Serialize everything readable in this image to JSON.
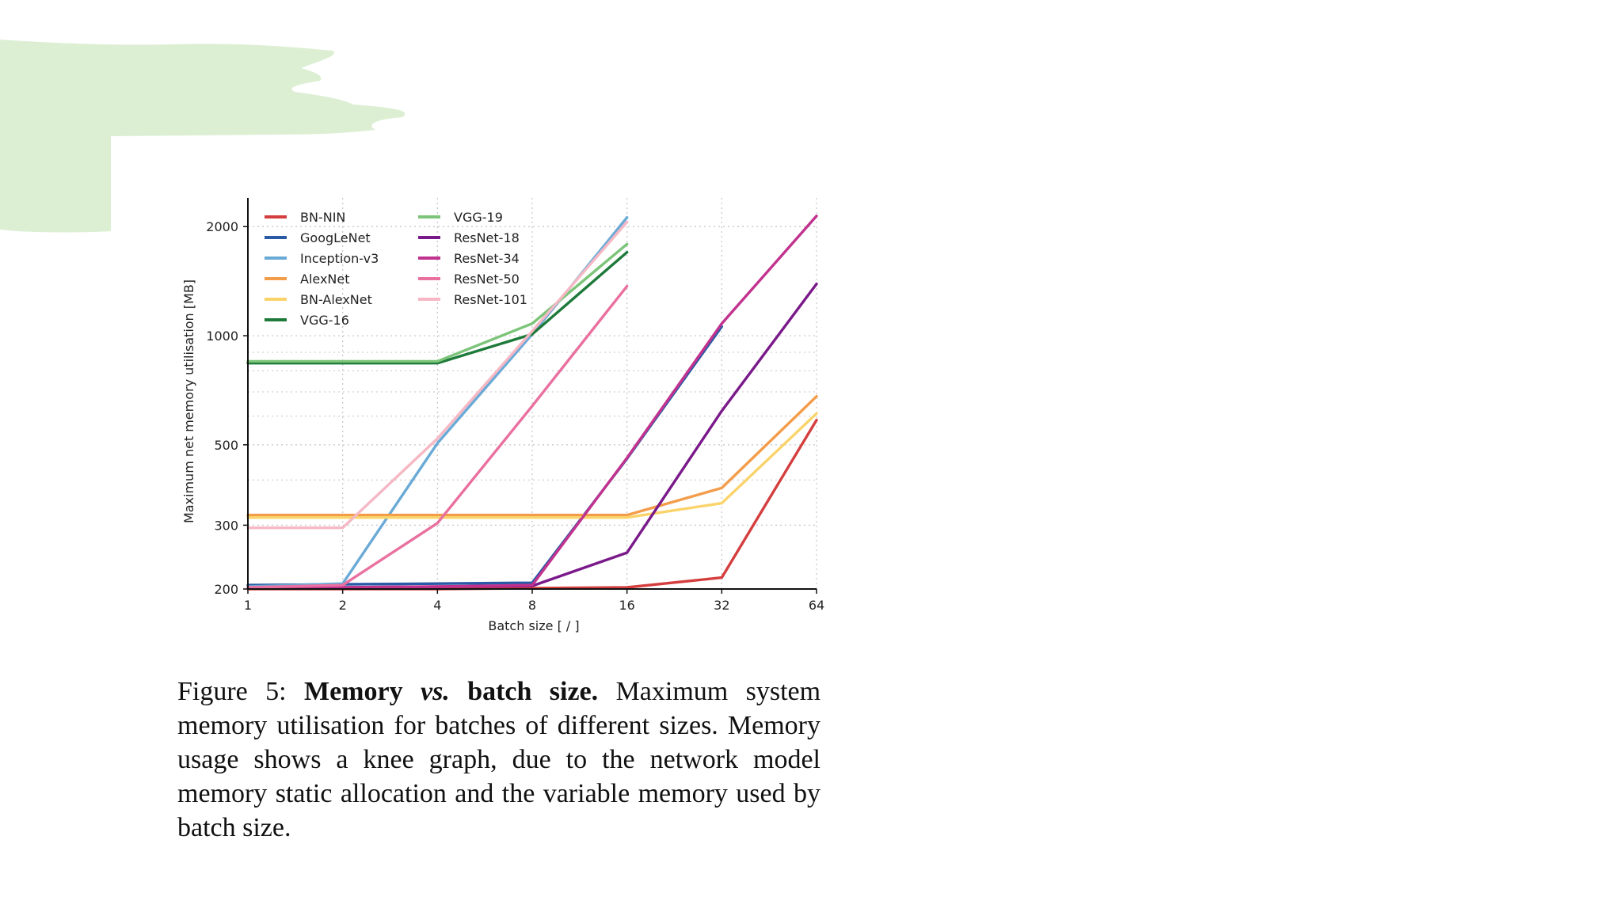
{
  "colors": {
    "background": "#ffffff",
    "brush": "#dcefd3",
    "grid": "#c4c4c4"
  },
  "caption": {
    "label": "Figure 5:",
    "title_pre": "Memory",
    "title_vs": "vs.",
    "title_post": "batch size.",
    "body": "Maximum system memory utilisation for batches of different sizes. Memory usage shows a knee graph, due to the network model memory static allocation and the variable memory used by batch size."
  },
  "chart_data": {
    "type": "line",
    "title": "",
    "xlabel": "Batch size [ / ]",
    "ylabel": "Maximum net memory utilisation [MB]",
    "x_scale": "log2",
    "y_scale": "log",
    "x_ticks": [
      1,
      2,
      4,
      8,
      16,
      32,
      64
    ],
    "y_ticks": [
      200,
      300,
      500,
      1000,
      2000
    ],
    "xlim": [
      1,
      64
    ],
    "ylim": [
      200,
      2400
    ],
    "grid": true,
    "legend_position": "top-left",
    "series": [
      {
        "name": "BN-NIN",
        "color": "#d53e3e",
        "x": [
          1,
          2,
          4,
          8,
          16,
          32,
          64
        ],
        "y": [
          200,
          200,
          200,
          201,
          202,
          215,
          585
        ]
      },
      {
        "name": "GoogLeNet",
        "color": "#2a5aa5",
        "x": [
          1,
          2,
          4,
          8,
          16,
          32
        ],
        "y": [
          205,
          206,
          207,
          208,
          458,
          1060
        ]
      },
      {
        "name": "Inception-v3",
        "color": "#6aaad6",
        "x": [
          1,
          2,
          4,
          8,
          16
        ],
        "y": [
          203,
          207,
          505,
          1010,
          2120
        ]
      },
      {
        "name": "AlexNet",
        "color": "#f39c4a",
        "x": [
          1,
          2,
          4,
          8,
          16,
          32,
          64
        ],
        "y": [
          320,
          320,
          320,
          320,
          320,
          380,
          680
        ]
      },
      {
        "name": "BN-AlexNet",
        "color": "#fad36a",
        "x": [
          1,
          2,
          4,
          8,
          16,
          32,
          64
        ],
        "y": [
          315,
          315,
          315,
          315,
          315,
          345,
          610
        ]
      },
      {
        "name": "VGG-16",
        "color": "#1d7a3a",
        "x": [
          1,
          2,
          4,
          8,
          16
        ],
        "y": [
          840,
          840,
          840,
          1010,
          1700
        ]
      },
      {
        "name": "VGG-19",
        "color": "#7cc47a",
        "x": [
          1,
          2,
          4,
          8,
          16
        ],
        "y": [
          850,
          850,
          850,
          1080,
          1790
        ]
      },
      {
        "name": "ResNet-18",
        "color": "#7a1a8a",
        "x": [
          1,
          2,
          4,
          8,
          16,
          32,
          64
        ],
        "y": [
          201,
          202,
          203,
          204,
          252,
          620,
          1390
        ]
      },
      {
        "name": "ResNet-34",
        "color": "#c2328f",
        "x": [
          1,
          2,
          4,
          8,
          16,
          32,
          64
        ],
        "y": [
          201,
          202,
          203,
          205,
          460,
          1080,
          2140
        ]
      },
      {
        "name": "ResNet-50",
        "color": "#e9709f",
        "x": [
          1,
          2,
          4,
          8,
          16
        ],
        "y": [
          202,
          205,
          304,
          640,
          1370
        ]
      },
      {
        "name": "ResNet-101",
        "color": "#f5b8c4",
        "x": [
          1,
          2,
          4,
          8,
          16
        ],
        "y": [
          295,
          295,
          520,
          1030,
          2060
        ]
      }
    ],
    "legend_order": [
      "BN-NIN",
      "GoogLeNet",
      "Inception-v3",
      "AlexNet",
      "BN-AlexNet",
      "VGG-16",
      "VGG-19",
      "ResNet-18",
      "ResNet-34",
      "ResNet-50",
      "ResNet-101"
    ]
  }
}
